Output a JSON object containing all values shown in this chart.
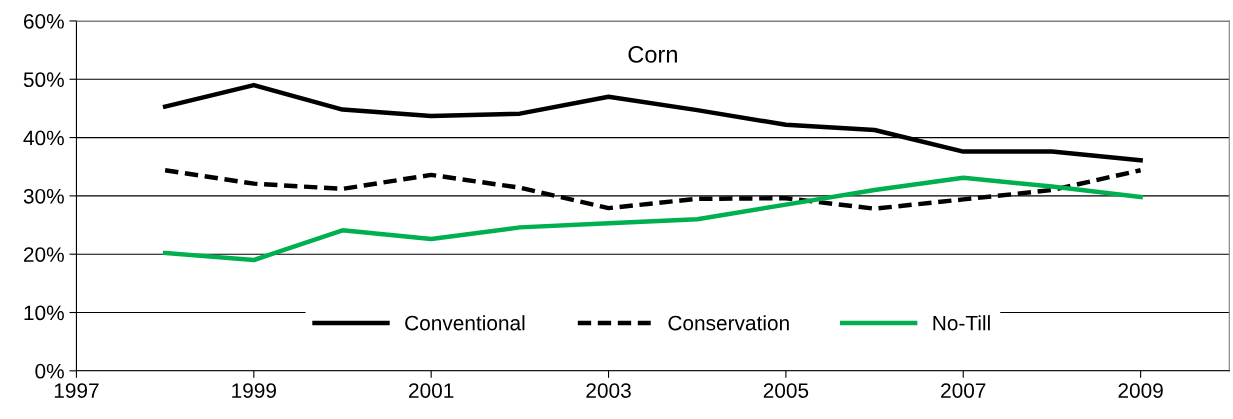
{
  "chart_data": {
    "type": "line",
    "title": "Corn",
    "x": [
      1998,
      1999,
      2000,
      2001,
      2002,
      2003,
      2004,
      2005,
      2006,
      2007,
      2008,
      2009
    ],
    "series": [
      {
        "name": "Conventional",
        "color": "#000000",
        "line_style": "solid",
        "values": [
          45.3,
          49.0,
          44.8,
          43.7,
          44.1,
          47.0,
          44.7,
          42.2,
          41.3,
          37.6,
          37.6,
          36.1
        ]
      },
      {
        "name": "Conservation",
        "color": "#000000",
        "line_style": "dashed",
        "values": [
          34.4,
          32.1,
          31.2,
          33.6,
          31.4,
          27.9,
          29.5,
          29.6,
          27.8,
          29.4,
          31.0,
          34.4
        ]
      },
      {
        "name": "No-Till",
        "color": "#00b050",
        "line_style": "solid",
        "values": [
          20.2,
          19.0,
          24.1,
          22.6,
          24.6,
          25.3,
          26.0,
          28.5,
          31.0,
          33.1,
          31.6,
          29.8
        ]
      }
    ],
    "xlim": [
      1997,
      2010
    ],
    "xticks": [
      1997,
      1999,
      2001,
      2003,
      2005,
      2007,
      2009
    ],
    "ylim": [
      0,
      60
    ],
    "yticks": [
      {
        "value": 0,
        "label": "0%"
      },
      {
        "value": 10,
        "label": "10%"
      },
      {
        "value": 20,
        "label": "20%"
      },
      {
        "value": 30,
        "label": "30%"
      },
      {
        "value": 40,
        "label": "40%"
      },
      {
        "value": 50,
        "label": "50%"
      },
      {
        "value": 60,
        "label": "60%"
      }
    ],
    "grid": "y",
    "legend": "bottom",
    "marker": "none"
  }
}
